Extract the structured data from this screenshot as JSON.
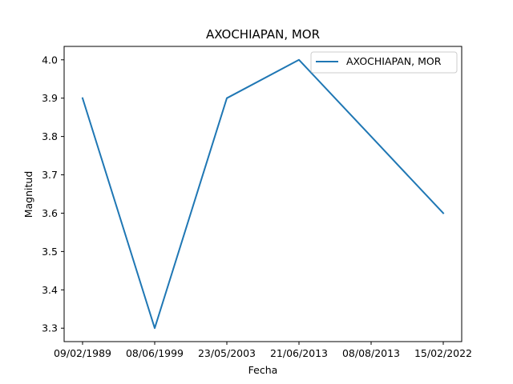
{
  "chart_data": {
    "type": "line",
    "title": "AXOCHIAPAN, MOR",
    "xlabel": "Fecha",
    "ylabel": "Magnitud",
    "categories": [
      "09/02/1989",
      "08/06/1999",
      "23/05/2003",
      "21/06/2013",
      "08/08/2013",
      "15/02/2022"
    ],
    "series": [
      {
        "name": "AXOCHIAPAN, MOR",
        "values": [
          3.9,
          3.3,
          3.9,
          4.0,
          3.8,
          3.6
        ],
        "color": "#1f77b4"
      }
    ],
    "yticks": [
      "3.3",
      "3.4",
      "3.5",
      "3.6",
      "3.7",
      "3.8",
      "3.9",
      "4.0"
    ],
    "ylim": [
      3.265,
      4.035
    ],
    "grid": false,
    "legend_position": "top-right"
  }
}
